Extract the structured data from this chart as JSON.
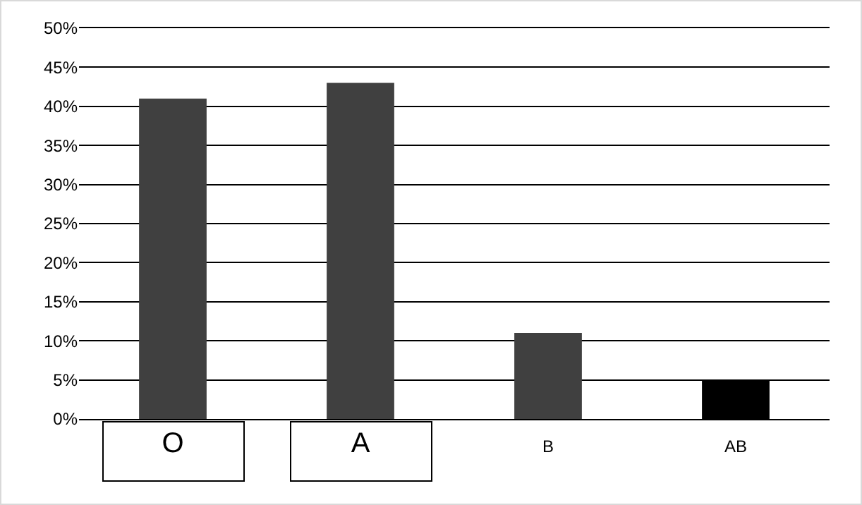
{
  "chart_data": {
    "type": "bar",
    "categories": [
      "O",
      "A",
      "B",
      "AB"
    ],
    "values": [
      41,
      43,
      11,
      5
    ],
    "colors": [
      "#404040",
      "#404040",
      "#404040",
      "#000000"
    ],
    "ylim": [
      0,
      50
    ],
    "yticks": [
      {
        "value": 0,
        "label": "0%"
      },
      {
        "value": 5,
        "label": "5%"
      },
      {
        "value": 10,
        "label": "10%"
      },
      {
        "value": 15,
        "label": "15%"
      },
      {
        "value": 20,
        "label": "20%"
      },
      {
        "value": 25,
        "label": "25%"
      },
      {
        "value": 30,
        "label": "30%"
      },
      {
        "value": 35,
        "label": "35%"
      },
      {
        "value": 40,
        "label": "40%"
      },
      {
        "value": 45,
        "label": "45%"
      },
      {
        "value": 50,
        "label": "50%"
      }
    ],
    "grid": "y"
  }
}
